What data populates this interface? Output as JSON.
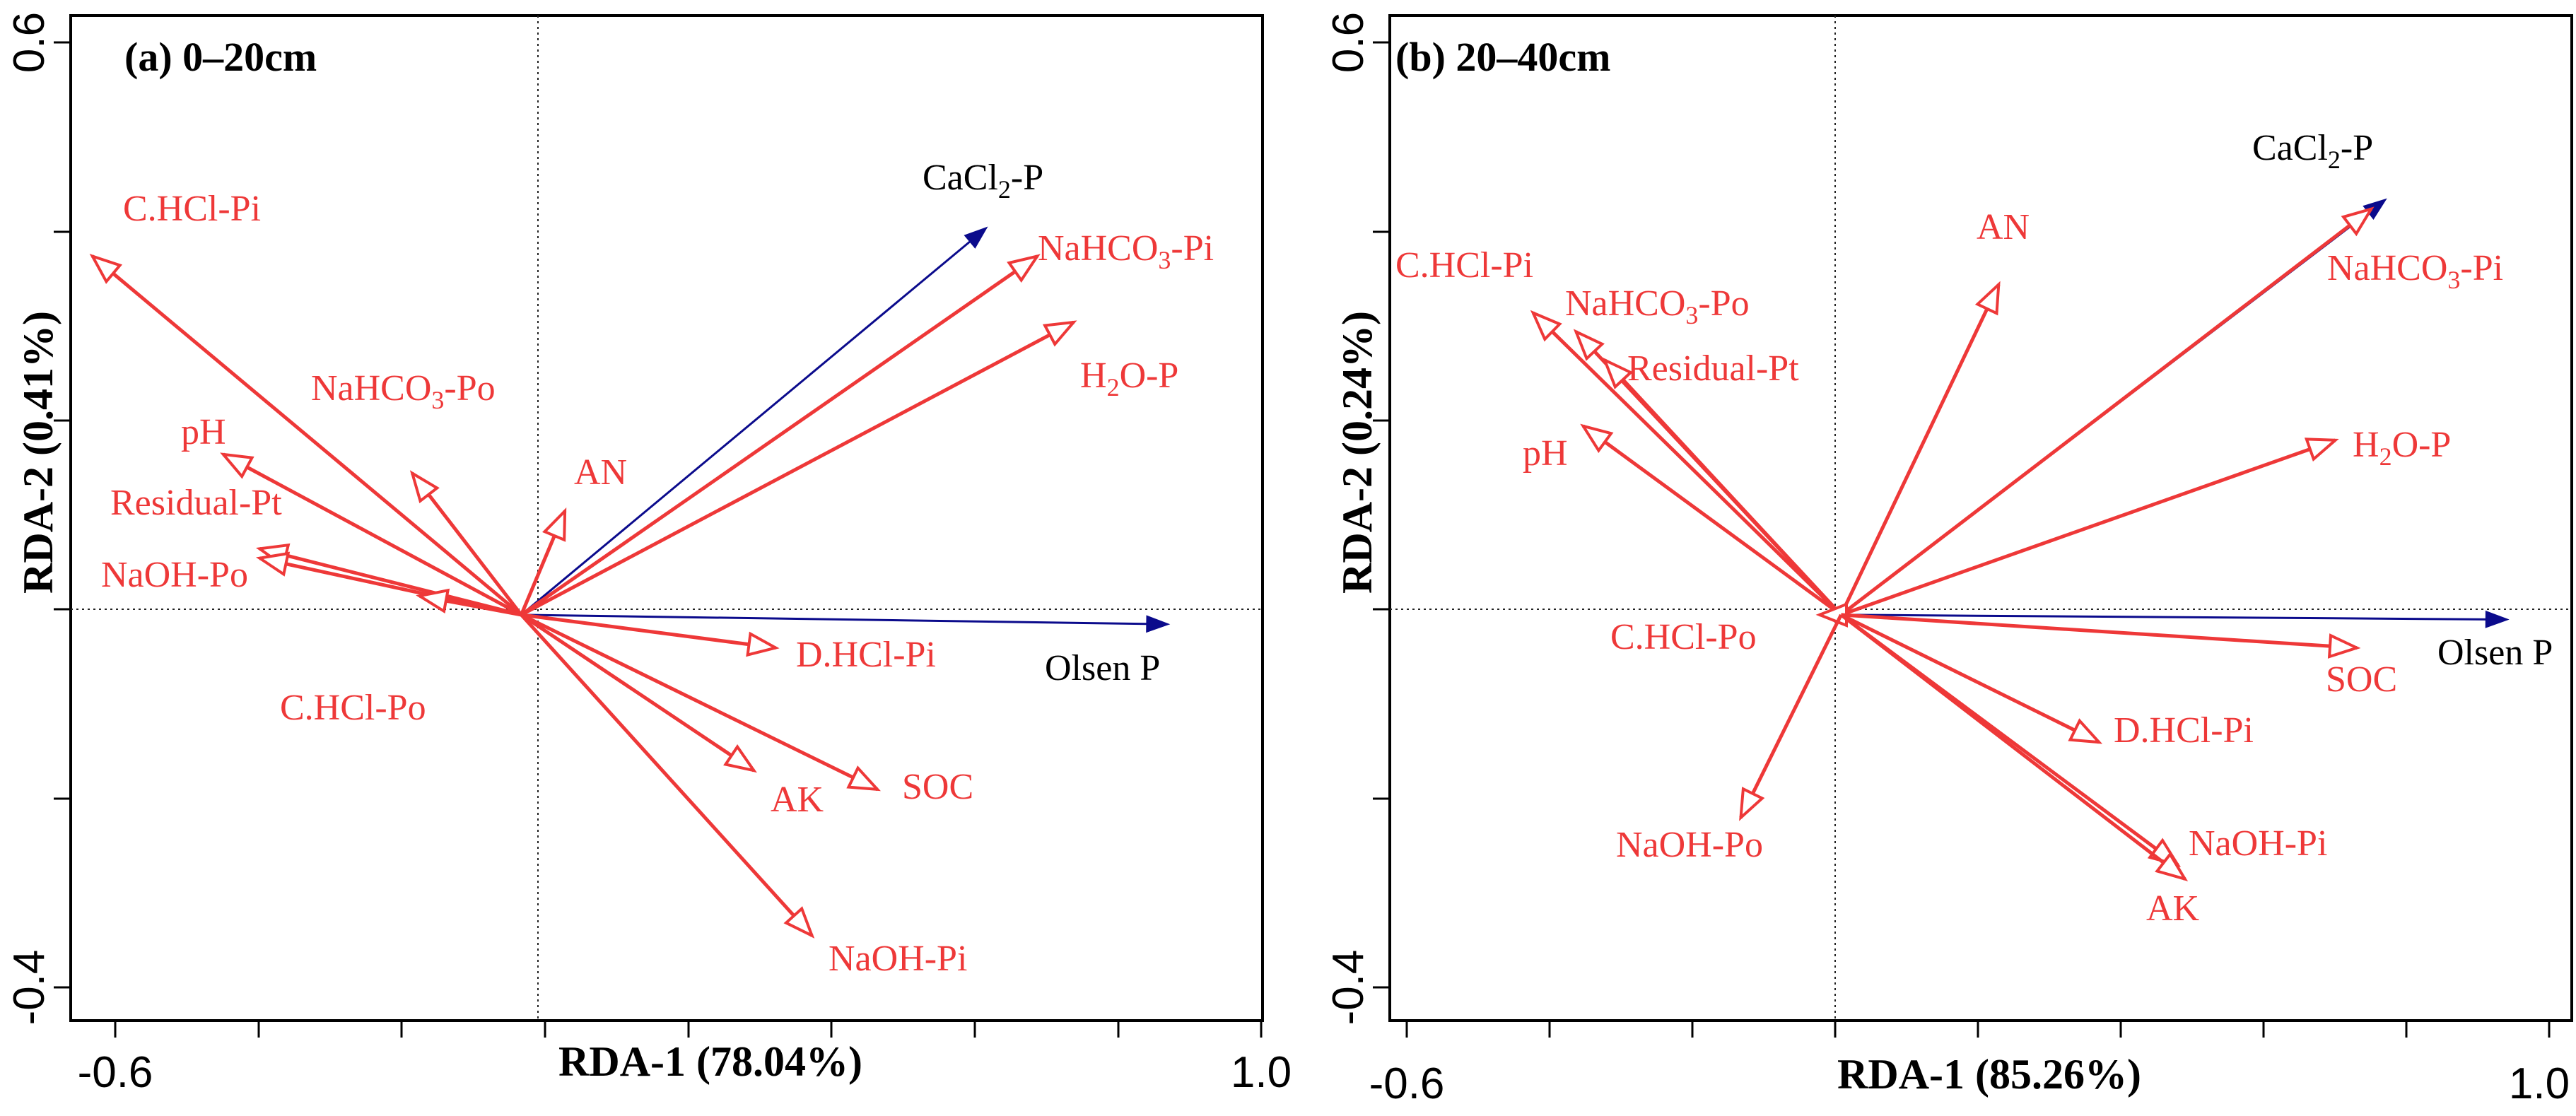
{
  "chart_data": [
    {
      "type": "biplot",
      "title": "(a) 0–20cm",
      "xlabel": "RDA-1 (78.04%)",
      "ylabel": "RDA-2 (0.41%)",
      "xlim": [
        -0.6,
        1.0
      ],
      "ylim": [
        -0.4,
        0.6
      ],
      "x_tick_labels": [
        "-0.6",
        "1.0"
      ],
      "y_tick_labels": [
        "-0.4",
        "0.6"
      ],
      "reference_lines": {
        "x": 0,
        "y": 0
      },
      "series": [
        {
          "name": "response",
          "color": "#0b0b8c",
          "vectors": [
            {
              "label": "CaCl",
              "sub": "2",
              "tail": "-P",
              "x": 0.64,
              "y": 0.41
            },
            {
              "label": "Olsen P",
              "x": 0.89,
              "y": -0.01
            }
          ]
        },
        {
          "name": "explanatory",
          "color": "#ee3838",
          "vectors": [
            {
              "label": "C.HCl-Pi",
              "x": -0.59,
              "y": 0.38
            },
            {
              "label": "NaHCO",
              "sub": "3",
              "tail": "-Pi",
              "x": 0.71,
              "y": 0.38
            },
            {
              "label": "H",
              "sub": "2",
              "tail": "O-P",
              "x": 0.76,
              "y": 0.31
            },
            {
              "label": "NaHCO",
              "sub": "3",
              "tail": "-Po",
              "x": -0.15,
              "y": 0.15
            },
            {
              "label": "pH",
              "x": -0.41,
              "y": 0.17
            },
            {
              "label": "AN",
              "x": 0.06,
              "y": 0.11
            },
            {
              "label": "Residual-Pt",
              "x": -0.36,
              "y": 0.07
            },
            {
              "label": "NaOH-Po",
              "x": -0.36,
              "y": 0.06
            },
            {
              "label": "C.HCl-Po",
              "x": -0.14,
              "y": 0.02
            },
            {
              "label": "D.HCl-Pi",
              "x": 0.35,
              "y": -0.035
            },
            {
              "label": "AK",
              "x": 0.32,
              "y": -0.165
            },
            {
              "label": "SOC",
              "x": 0.49,
              "y": -0.185
            },
            {
              "label": "NaOH-Pi",
              "x": 0.4,
              "y": -0.34
            }
          ]
        }
      ]
    },
    {
      "type": "biplot",
      "title": "(b) 20–40cm",
      "xlabel": "RDA-1 (85.26%)",
      "ylabel": "RDA-2 (0.24%)",
      "xlim": [
        -0.6,
        1.0
      ],
      "ylim": [
        -0.4,
        0.6
      ],
      "x_tick_labels": [
        "-0.6",
        "1.0"
      ],
      "y_tick_labels": [
        "-0.4",
        "0.6"
      ],
      "reference_lines": {
        "x": 0,
        "y": 0
      },
      "series": [
        {
          "name": "response",
          "color": "#0b0b8c",
          "vectors": [
            {
              "label": "CaCl",
              "sub": "2",
              "tail": "-P",
              "x": 0.76,
              "y": 0.44
            },
            {
              "label": "Olsen P",
              "x": 0.93,
              "y": -0.005
            }
          ]
        },
        {
          "name": "explanatory",
          "color": "#ee3838",
          "vectors": [
            {
              "label": "C.HCl-Pi",
              "x": -0.43,
              "y": 0.32
            },
            {
              "label": "NaHCO",
              "sub": "3",
              "tail": "-Po",
              "x": -0.37,
              "y": 0.3
            },
            {
              "label": "Residual-Pt",
              "x": -0.33,
              "y": 0.27
            },
            {
              "label": "pH",
              "x": -0.36,
              "y": 0.2
            },
            {
              "label": "AN",
              "x": 0.22,
              "y": 0.35
            },
            {
              "label": "NaHCO",
              "sub": "3",
              "tail": "-Pi",
              "x": 0.74,
              "y": 0.43
            },
            {
              "label": "H",
              "sub": "2",
              "tail": "O-P",
              "x": 0.69,
              "y": 0.185
            },
            {
              "label": "C.HCl-Po",
              "x": -0.03,
              "y": 0.0
            },
            {
              "label": "SOC",
              "x": 0.72,
              "y": -0.035
            },
            {
              "label": "D.HCl-Pi",
              "x": 0.36,
              "y": -0.135
            },
            {
              "label": "NaOH-Po",
              "x": -0.14,
              "y": -0.215
            },
            {
              "label": "NaOH-Pi",
              "x": 0.47,
              "y": -0.265
            },
            {
              "label": "AK",
              "x": 0.48,
              "y": -0.28
            }
          ]
        }
      ]
    }
  ]
}
